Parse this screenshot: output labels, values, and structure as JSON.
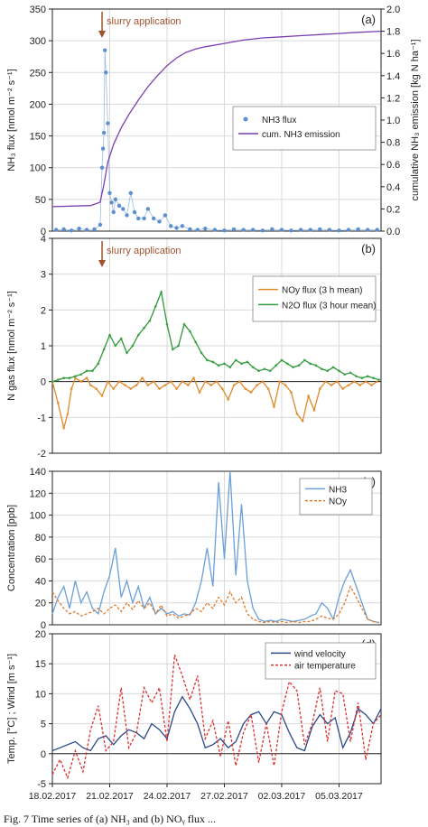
{
  "caption": "Fig. 7   Time series of (a) NH₃ and (b) NOᵧ flux ...",
  "x_tick_labels": [
    "18.02.2017",
    "21.02.2017",
    "24.02.2017",
    "27.02.2017",
    "02.03.2017",
    "05.03.2017"
  ],
  "colors": {
    "nh3_flux": "#5b8fd0",
    "cum_emission": "#7b3fb0",
    "noy_flux": "#e08a2a",
    "n2o_flux": "#2e9a3a",
    "nh3_conc": "#6a9fd8",
    "noy_conc": "#e07a2a",
    "wind": "#2a4a8a",
    "air_temp": "#d93030",
    "annotation": "#a0522d",
    "grid": "#d9d9d9"
  },
  "chart_data": [
    {
      "type": "line",
      "panel_label": "(a)",
      "annotation": "slurry application",
      "annotation_x": 20.6,
      "ylabel": "NH₃ flux [nmol m⁻² s⁻¹]",
      "ylabel2": "cumulative NH₃ emission [kg N ha⁻¹]",
      "ylim": [
        0,
        350
      ],
      "ylim2": [
        0,
        2.0
      ],
      "yticks": [
        "0",
        "50",
        "100",
        "150",
        "200",
        "250",
        "300",
        "350"
      ],
      "yticks2": [
        "0.0",
        "0.2",
        "0.4",
        "0.6",
        "0.8",
        "1.0",
        "1.2",
        "1.4",
        "1.6",
        "1.8",
        "2.0"
      ],
      "xlim": [
        18,
        35.2
      ],
      "grid": true,
      "legend_position": "middle-right",
      "series": [
        {
          "name": "NH3 flux",
          "style": "points",
          "x": [
            18.2,
            18.6,
            19.0,
            19.4,
            19.8,
            20.2,
            20.5,
            20.6,
            20.65,
            20.7,
            20.75,
            20.8,
            20.9,
            21.0,
            21.1,
            21.2,
            21.3,
            21.5,
            21.7,
            21.9,
            22.1,
            22.3,
            22.5,
            22.8,
            23.0,
            23.3,
            23.6,
            23.9,
            24.2,
            24.5,
            24.8,
            25.2,
            25.6,
            26.0,
            26.5,
            27.0,
            27.5,
            28.0,
            28.5,
            29.0,
            29.5,
            30.0,
            30.5,
            31.0,
            31.5,
            32.0,
            32.5,
            33.0,
            33.5,
            34.0,
            34.5,
            35.0
          ],
          "values": [
            2,
            3,
            1,
            4,
            2,
            3,
            10,
            100,
            130,
            155,
            285,
            250,
            170,
            60,
            45,
            30,
            50,
            40,
            35,
            25,
            60,
            30,
            20,
            20,
            35,
            20,
            15,
            25,
            8,
            5,
            8,
            3,
            2,
            4,
            2,
            1,
            3,
            2,
            2,
            1,
            3,
            2,
            1,
            2,
            2,
            3,
            2,
            1,
            2,
            3,
            2,
            2
          ]
        },
        {
          "name": "cum. NH3 emission",
          "style": "line",
          "axis": "right",
          "x": [
            18.0,
            20.0,
            20.5,
            20.7,
            20.9,
            21.2,
            21.6,
            22.0,
            22.5,
            23.0,
            23.5,
            24.0,
            24.5,
            25.0,
            25.5,
            26.0,
            27.0,
            28.0,
            29.0,
            30.0,
            31.0,
            32.0,
            33.0,
            34.0,
            35.2
          ],
          "values": [
            0.22,
            0.23,
            0.26,
            0.42,
            0.62,
            0.78,
            0.93,
            1.05,
            1.18,
            1.3,
            1.4,
            1.49,
            1.56,
            1.61,
            1.64,
            1.66,
            1.69,
            1.72,
            1.74,
            1.75,
            1.76,
            1.77,
            1.78,
            1.79,
            1.8
          ]
        }
      ]
    },
    {
      "type": "line",
      "panel_label": "(b)",
      "annotation": "slurry application",
      "annotation_x": 20.6,
      "ylabel": "N gas flux [nmol m⁻² s⁻¹]",
      "ylim": [
        -2,
        4
      ],
      "yticks": [
        "-2",
        "-1",
        "0",
        "1",
        "2",
        "3",
        "4"
      ],
      "xlim": [
        18,
        35.2
      ],
      "grid": true,
      "legend_position": "middle-right",
      "series": [
        {
          "name": "NOy flux (3 h mean)",
          "x": [
            18.0,
            18.3,
            18.6,
            18.8,
            19.0,
            19.2,
            19.5,
            19.8,
            20.0,
            20.3,
            20.6,
            20.9,
            21.2,
            21.5,
            21.8,
            22.1,
            22.4,
            22.7,
            23.0,
            23.3,
            23.6,
            23.9,
            24.2,
            24.5,
            24.8,
            25.1,
            25.4,
            25.7,
            26.0,
            26.3,
            26.6,
            26.9,
            27.2,
            27.5,
            27.8,
            28.1,
            28.4,
            28.7,
            29.0,
            29.3,
            29.6,
            29.9,
            30.2,
            30.5,
            30.8,
            31.1,
            31.4,
            31.7,
            32.0,
            32.3,
            32.6,
            32.9,
            33.2,
            33.5,
            33.8,
            34.1,
            34.4,
            34.7,
            35.0
          ],
          "values": [
            0.0,
            -0.6,
            -1.3,
            -0.9,
            -0.2,
            0.1,
            0.0,
            0.1,
            -0.1,
            -0.2,
            -0.4,
            0.0,
            -0.2,
            0.0,
            -0.1,
            -0.2,
            -0.1,
            0.1,
            -0.1,
            0.0,
            -0.2,
            -0.1,
            0.0,
            -0.2,
            0.0,
            -0.1,
            0.1,
            -0.3,
            0.0,
            -0.1,
            0.0,
            -0.2,
            -0.5,
            -0.1,
            0.0,
            -0.2,
            -0.3,
            -0.1,
            0.0,
            -0.2,
            -0.7,
            0.0,
            -0.1,
            -0.3,
            -0.9,
            -1.1,
            -0.4,
            -0.8,
            -0.2,
            0.0,
            -0.1,
            0.0,
            -0.2,
            -0.1,
            0.0,
            -0.1,
            0.0,
            -0.1,
            0.0
          ]
        },
        {
          "name": "N2O flux (3 hour mean)",
          "x": [
            18.0,
            18.3,
            18.6,
            18.9,
            19.2,
            19.5,
            19.8,
            20.1,
            20.4,
            20.7,
            21.0,
            21.3,
            21.6,
            21.9,
            22.2,
            22.5,
            22.8,
            23.1,
            23.4,
            23.7,
            24.0,
            24.3,
            24.6,
            24.9,
            25.2,
            25.5,
            25.8,
            26.1,
            26.4,
            26.7,
            27.0,
            27.3,
            27.6,
            27.9,
            28.2,
            28.5,
            28.8,
            29.1,
            29.4,
            29.7,
            30.0,
            30.3,
            30.6,
            30.9,
            31.2,
            31.5,
            31.8,
            32.1,
            32.4,
            32.7,
            33.0,
            33.3,
            33.6,
            33.9,
            34.2,
            34.5,
            34.8,
            35.1
          ],
          "values": [
            0.0,
            0.05,
            0.1,
            0.1,
            0.15,
            0.2,
            0.3,
            0.3,
            0.5,
            0.9,
            1.3,
            1.0,
            1.2,
            0.8,
            1.0,
            1.3,
            1.5,
            1.7,
            2.1,
            2.5,
            1.6,
            0.9,
            1.0,
            1.6,
            1.4,
            1.1,
            0.8,
            0.6,
            0.55,
            0.45,
            0.5,
            0.4,
            0.6,
            0.5,
            0.55,
            0.4,
            0.3,
            0.35,
            0.3,
            0.45,
            0.6,
            0.5,
            0.4,
            0.45,
            0.6,
            0.5,
            0.45,
            0.35,
            0.3,
            0.4,
            0.3,
            0.2,
            0.25,
            0.15,
            0.1,
            0.15,
            0.1,
            0.05
          ]
        }
      ]
    },
    {
      "type": "line",
      "panel_label": "(c)",
      "ylabel": "Concentration [ppb]",
      "ylim": [
        0,
        140
      ],
      "yticks": [
        "0",
        "20",
        "40",
        "60",
        "80",
        "100",
        "120",
        "140"
      ],
      "xlim": [
        18,
        35.2
      ],
      "grid": true,
      "legend_position": "top-right",
      "series": [
        {
          "name": "NH3",
          "x": [
            18.0,
            18.3,
            18.6,
            18.9,
            19.2,
            19.5,
            19.8,
            20.1,
            20.4,
            20.7,
            21.0,
            21.3,
            21.6,
            21.9,
            22.2,
            22.5,
            22.8,
            23.1,
            23.4,
            23.7,
            24.0,
            24.3,
            24.6,
            24.9,
            25.2,
            25.5,
            25.8,
            26.1,
            26.4,
            26.7,
            27.0,
            27.3,
            27.6,
            27.9,
            28.2,
            28.5,
            28.8,
            29.1,
            29.4,
            29.7,
            30.0,
            30.3,
            30.6,
            30.9,
            31.2,
            31.5,
            31.8,
            32.1,
            32.4,
            32.7,
            33.0,
            33.3,
            33.6,
            33.9,
            34.2,
            34.5,
            34.8,
            35.1
          ],
          "values": [
            10,
            25,
            35,
            15,
            40,
            20,
            30,
            15,
            10,
            30,
            45,
            70,
            25,
            40,
            20,
            35,
            15,
            25,
            10,
            15,
            10,
            12,
            8,
            10,
            9,
            20,
            40,
            70,
            35,
            130,
            60,
            140,
            45,
            110,
            40,
            15,
            5,
            3,
            4,
            3,
            5,
            4,
            3,
            4,
            5,
            8,
            10,
            20,
            15,
            5,
            25,
            40,
            50,
            35,
            20,
            5,
            3,
            2
          ]
        },
        {
          "name": "NOy",
          "style": "dashed",
          "x": [
            18.0,
            18.3,
            18.6,
            18.9,
            19.2,
            19.5,
            19.8,
            20.1,
            20.4,
            20.7,
            21.0,
            21.3,
            21.6,
            21.9,
            22.2,
            22.5,
            22.8,
            23.1,
            23.4,
            23.7,
            24.0,
            24.3,
            24.6,
            24.9,
            25.2,
            25.5,
            25.8,
            26.1,
            26.4,
            26.7,
            27.0,
            27.3,
            27.6,
            27.9,
            28.2,
            28.5,
            28.8,
            29.1,
            29.4,
            29.7,
            30.0,
            30.3,
            30.6,
            30.9,
            31.2,
            31.5,
            31.8,
            32.1,
            32.4,
            32.7,
            33.0,
            33.3,
            33.6,
            33.9,
            34.2,
            34.5,
            34.8,
            35.1
          ],
          "values": [
            30,
            22,
            15,
            10,
            12,
            8,
            10,
            12,
            15,
            10,
            15,
            18,
            12,
            20,
            14,
            22,
            15,
            20,
            10,
            18,
            8,
            10,
            6,
            8,
            10,
            15,
            12,
            20,
            15,
            25,
            18,
            30,
            20,
            25,
            10,
            5,
            3,
            2,
            3,
            2,
            3,
            2,
            3,
            2,
            3,
            3,
            5,
            8,
            6,
            5,
            10,
            20,
            35,
            25,
            15,
            5,
            3,
            2
          ]
        }
      ]
    },
    {
      "type": "line",
      "panel_label": "(d)",
      "ylabel": "Temp. [°C] ; Wind [m s⁻¹]",
      "ylim": [
        -5,
        20
      ],
      "yticks": [
        "-5",
        "0",
        "5",
        "10",
        "15",
        "20"
      ],
      "xlim": [
        18,
        35.2
      ],
      "grid": true,
      "legend_position": "top-right",
      "series": [
        {
          "name": "wind velocity",
          "x": [
            18.0,
            18.4,
            18.8,
            19.2,
            19.6,
            20.0,
            20.4,
            20.8,
            21.2,
            21.6,
            22.0,
            22.4,
            22.8,
            23.2,
            23.6,
            24.0,
            24.4,
            24.8,
            25.2,
            25.6,
            26.0,
            26.4,
            26.8,
            27.2,
            27.6,
            28.0,
            28.4,
            28.8,
            29.2,
            29.6,
            30.0,
            30.4,
            30.8,
            31.2,
            31.6,
            32.0,
            32.4,
            32.8,
            33.2,
            33.6,
            34.0,
            34.4,
            34.8,
            35.2
          ],
          "values": [
            0.5,
            1.0,
            1.5,
            2.0,
            1.0,
            0.5,
            2.5,
            3.0,
            1.5,
            3.0,
            4.0,
            3.5,
            2.5,
            5.0,
            4.0,
            2.5,
            7.0,
            9.5,
            7.5,
            5.0,
            1.0,
            1.5,
            2.5,
            1.0,
            2.0,
            5.0,
            6.5,
            7.0,
            5.0,
            7.0,
            6.5,
            3.5,
            1.0,
            0.5,
            4.5,
            6.5,
            5.0,
            6.0,
            1.0,
            3.5,
            7.5,
            6.5,
            5.0,
            7.5
          ]
        },
        {
          "name": "air temperature",
          "style": "dashed",
          "x": [
            18.0,
            18.4,
            18.8,
            19.2,
            19.6,
            20.0,
            20.4,
            20.8,
            21.2,
            21.6,
            22.0,
            22.4,
            22.8,
            23.2,
            23.6,
            24.0,
            24.4,
            24.8,
            25.2,
            25.6,
            26.0,
            26.4,
            26.8,
            27.2,
            27.6,
            28.0,
            28.4,
            28.8,
            29.2,
            29.6,
            30.0,
            30.4,
            30.8,
            31.2,
            31.6,
            32.0,
            32.4,
            32.8,
            33.2,
            33.6,
            34.0,
            34.4,
            34.8,
            35.2
          ],
          "values": [
            -3.5,
            -1.0,
            -4.0,
            0.5,
            -3.0,
            4.0,
            8.0,
            0.5,
            2.0,
            11.0,
            1.0,
            3.5,
            11.0,
            8.5,
            11.0,
            2.0,
            16.5,
            13.0,
            9.0,
            13.0,
            2.5,
            5.5,
            -0.5,
            5.5,
            -2.0,
            3.5,
            6.5,
            -1.5,
            5.0,
            -2.0,
            7.0,
            12.0,
            10.5,
            1.5,
            5.0,
            11.0,
            2.0,
            10.5,
            10.0,
            2.0,
            8.5,
            -1.0,
            5.0,
            6.5
          ]
        }
      ]
    }
  ]
}
